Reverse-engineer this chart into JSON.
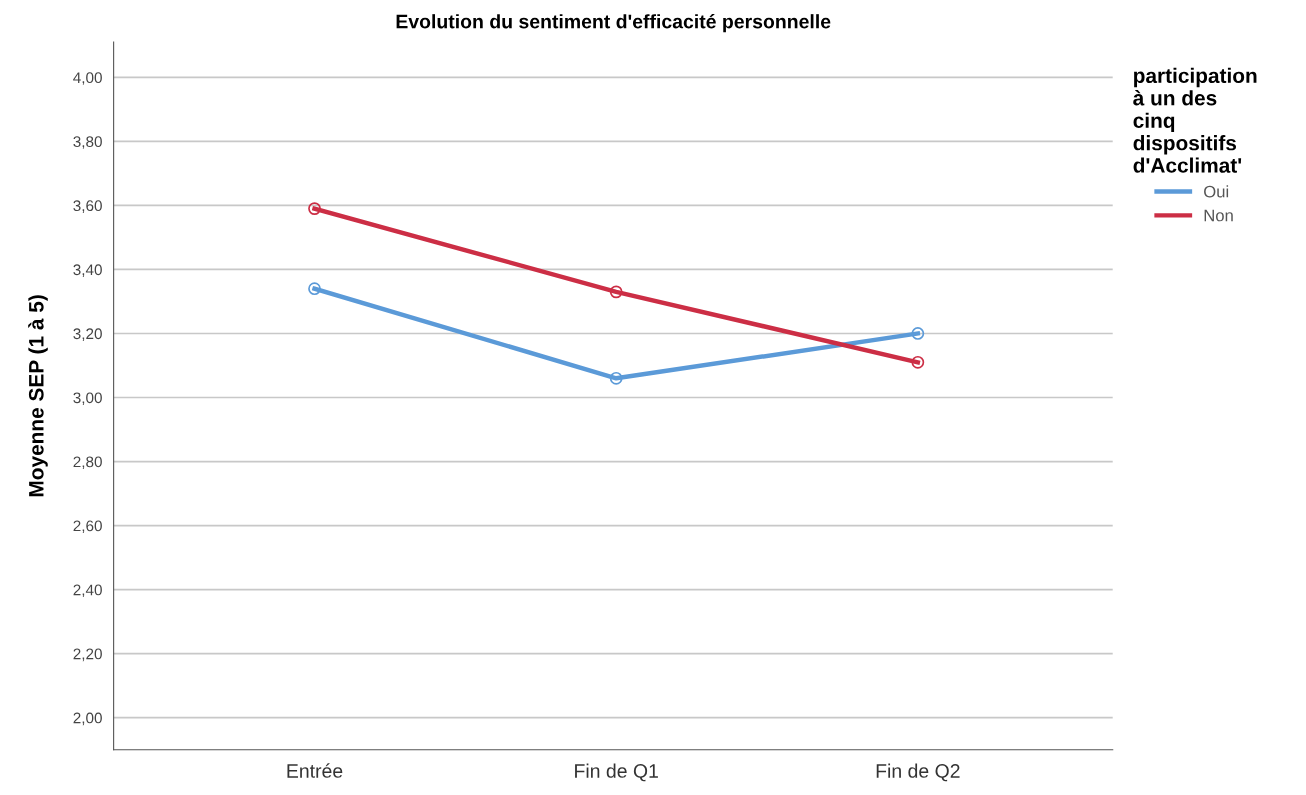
{
  "chart_data": {
    "type": "line",
    "title": "Evolution du sentiment d'efficacité personnelle",
    "ylabel": "Moyenne SEP (1 à 5)",
    "legend_title": "participation à un des cinq dispositifs d'Acclimat'",
    "categories": [
      "Entrée",
      "Fin de Q1",
      "Fin de Q2"
    ],
    "series": [
      {
        "name": "Oui",
        "color": "#5b9ad8",
        "values": [
          3.34,
          3.06,
          3.2
        ]
      },
      {
        "name": "Non",
        "color": "#cc2e45",
        "values": [
          3.59,
          3.33,
          3.11
        ]
      }
    ],
    "ylim": [
      1.9,
      4.11
    ],
    "yticks": [
      {
        "value": 2.0,
        "label": "2,00"
      },
      {
        "value": 2.2,
        "label": "2,20"
      },
      {
        "value": 2.4,
        "label": "2,40"
      },
      {
        "value": 2.6,
        "label": "2,60"
      },
      {
        "value": 2.8,
        "label": "2,80"
      },
      {
        "value": 3.0,
        "label": "3,00"
      },
      {
        "value": 3.2,
        "label": "3,20"
      },
      {
        "value": 3.4,
        "label": "3,40"
      },
      {
        "value": 3.6,
        "label": "3,60"
      },
      {
        "value": 3.8,
        "label": "3,80"
      },
      {
        "value": 4.0,
        "label": "4,00"
      }
    ],
    "grid": "y",
    "legend": "top right",
    "marker": "circle",
    "line_style": "solid"
  }
}
